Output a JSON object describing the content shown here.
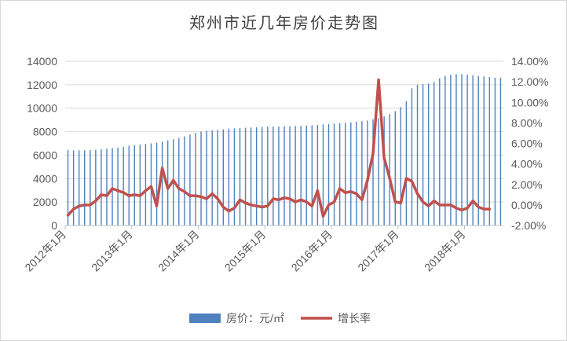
{
  "chart_data": {
    "type": "bar+line",
    "title": "郑州市近几年房价走势图",
    "y_left": {
      "min": 0,
      "max": 14000,
      "ticks": [
        "0",
        "2000",
        "4000",
        "6000",
        "8000",
        "10000",
        "12000",
        "14000"
      ]
    },
    "y_right": {
      "min": -2,
      "max": 14,
      "ticks": [
        "-2.00%",
        "0.00%",
        "2.00%",
        "4.00%",
        "6.00%",
        "8.00%",
        "10.00%",
        "12.00%",
        "14.00%"
      ]
    },
    "x_tick_labels": [
      "2012年1月",
      "2013年1月",
      "2014年1月",
      "2015年1月",
      "2016年1月",
      "2017年1月",
      "2018年1月"
    ],
    "x_tick_month_index": [
      0,
      12,
      24,
      36,
      48,
      60,
      72
    ],
    "legend_position": "bottom",
    "colors": {
      "bar": "#4f81bd",
      "line": "#c0504d",
      "grid": "#d9d9d9",
      "axis_text": "#595959"
    },
    "series": [
      {
        "name": "房价：元/㎡",
        "kind": "bar",
        "axis": "left",
        "values": [
          6450,
          6400,
          6420,
          6410,
          6430,
          6460,
          6500,
          6550,
          6600,
          6650,
          6700,
          6800,
          6850,
          6900,
          6950,
          7000,
          7050,
          7150,
          7250,
          7350,
          7450,
          7600,
          7750,
          7900,
          8000,
          8080,
          8120,
          8150,
          8200,
          8250,
          8280,
          8300,
          8330,
          8350,
          8380,
          8400,
          8420,
          8430,
          8440,
          8450,
          8460,
          8480,
          8500,
          8520,
          8550,
          8580,
          8620,
          8650,
          8700,
          8720,
          8760,
          8800,
          8850,
          8900,
          8950,
          9050,
          9150,
          9300,
          9500,
          9750,
          10100,
          10600,
          11700,
          12000,
          12050,
          12100,
          12250,
          12550,
          12750,
          12850,
          12900,
          12900,
          12850,
          12800,
          12750,
          12700,
          12650,
          12600,
          12600
        ]
      },
      {
        "name": "增长率",
        "kind": "line",
        "axis": "right",
        "values": [
          -1.0,
          -0.4,
          -0.1,
          0.0,
          0.0,
          0.4,
          1.0,
          0.9,
          1.6,
          1.4,
          1.2,
          0.9,
          1.0,
          0.9,
          1.4,
          1.8,
          -0.1,
          3.6,
          1.6,
          2.4,
          1.6,
          1.3,
          0.9,
          0.9,
          0.8,
          0.6,
          1.1,
          0.6,
          -0.2,
          -0.6,
          -0.3,
          0.5,
          0.2,
          0.0,
          -0.1,
          -0.2,
          -0.1,
          0.6,
          0.5,
          0.7,
          0.6,
          0.3,
          0.5,
          0.3,
          -0.1,
          1.4,
          -1.1,
          0.0,
          0.3,
          1.6,
          1.2,
          1.3,
          1.1,
          0.5,
          2.4,
          5.0,
          12.2,
          4.6,
          2.6,
          0.3,
          0.2,
          2.6,
          2.3,
          1.1,
          0.3,
          -0.1,
          0.4,
          0.0,
          0.0,
          0.0,
          -0.3,
          -0.5,
          -0.3,
          0.4,
          -0.2,
          -0.4,
          -0.4
        ]
      }
    ]
  }
}
